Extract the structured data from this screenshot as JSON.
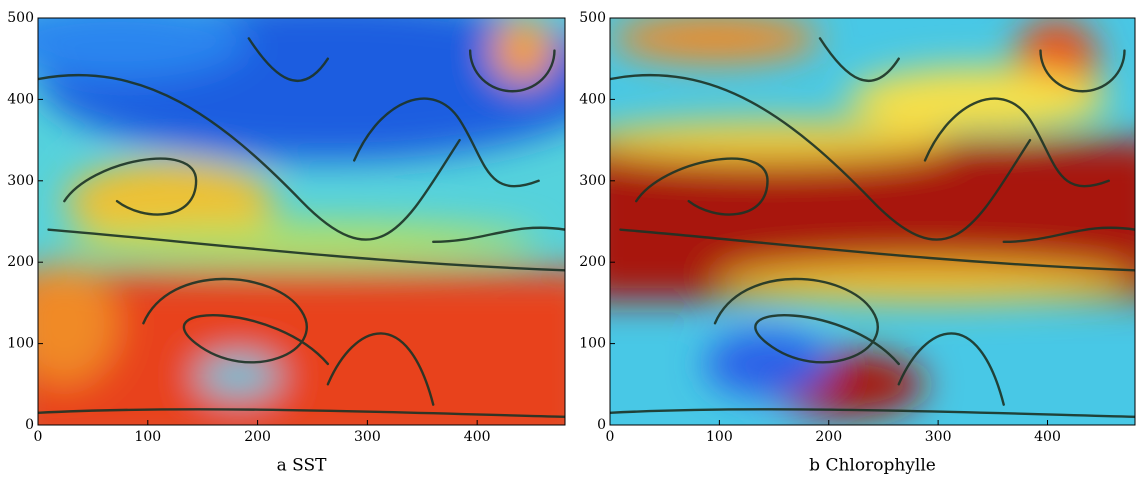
{
  "chart_data": [
    {
      "type": "heatmap",
      "caption": "a SST",
      "xlim": [
        0,
        480
      ],
      "ylim": [
        0,
        500
      ],
      "xticks": [
        0,
        100,
        200,
        300,
        400
      ],
      "yticks": [
        0,
        100,
        200,
        300,
        400,
        500
      ]
    },
    {
      "type": "heatmap",
      "caption": "b Chlorophylle",
      "xlim": [
        0,
        480
      ],
      "ylim": [
        0,
        500
      ],
      "xticks": [
        0,
        100,
        200,
        300,
        400
      ],
      "yticks": [
        0,
        100,
        200,
        300,
        400,
        500
      ]
    }
  ]
}
